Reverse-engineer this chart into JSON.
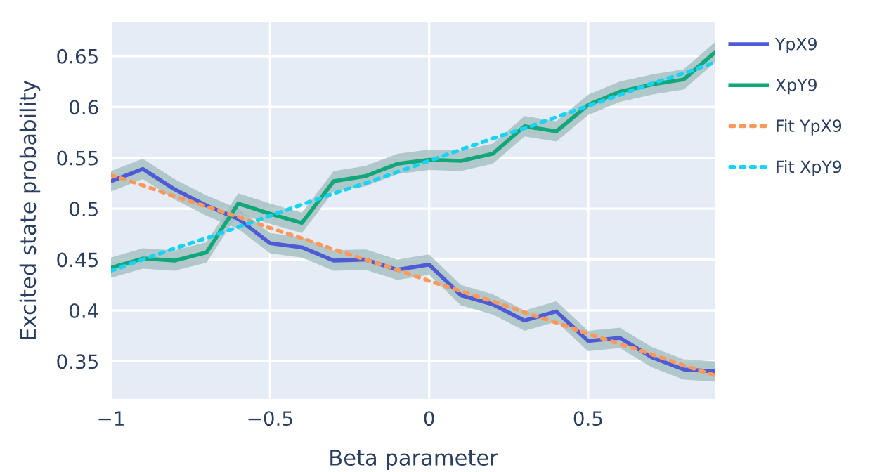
{
  "chart_data": {
    "type": "line",
    "xlabel": "Beta parameter",
    "ylabel": "Excited state probability",
    "x": [
      -1,
      -0.9,
      -0.8,
      -0.7,
      -0.6,
      -0.5,
      -0.4,
      -0.3,
      -0.2,
      -0.1,
      0,
      0.1,
      0.2,
      0.3,
      0.4,
      0.5,
      0.6,
      0.7,
      0.8,
      0.9
    ],
    "xlim": [
      -1,
      0.9
    ],
    "xticks": [
      -1,
      -0.5,
      0,
      0.5
    ],
    "ylim": [
      0.313,
      0.683
    ],
    "yticks": [
      0.35,
      0.4,
      0.45,
      0.5,
      0.55,
      0.6,
      0.65
    ],
    "grid": true,
    "legend": "top right",
    "marker": "none",
    "series": [
      {
        "name": "YpX9",
        "color": "#4f5bd5",
        "line_style": "solid",
        "values": [
          0.527,
          0.539,
          0.519,
          0.503,
          0.49,
          0.466,
          0.462,
          0.449,
          0.45,
          0.44,
          0.445,
          0.415,
          0.406,
          0.39,
          0.399,
          0.37,
          0.373,
          0.354,
          0.342,
          0.34
        ],
        "lower": [
          0.517,
          0.529,
          0.509,
          0.493,
          0.48,
          0.456,
          0.452,
          0.439,
          0.44,
          0.43,
          0.435,
          0.405,
          0.396,
          0.38,
          0.389,
          0.36,
          0.363,
          0.344,
          0.332,
          0.33
        ],
        "upper": [
          0.537,
          0.549,
          0.529,
          0.513,
          0.5,
          0.476,
          0.472,
          0.459,
          0.46,
          0.45,
          0.455,
          0.425,
          0.416,
          0.4,
          0.409,
          0.38,
          0.383,
          0.364,
          0.352,
          0.35
        ]
      },
      {
        "name": "XpY9",
        "color": "#12a77a",
        "line_style": "solid",
        "values": [
          0.442,
          0.451,
          0.449,
          0.457,
          0.505,
          0.495,
          0.486,
          0.527,
          0.532,
          0.544,
          0.548,
          0.547,
          0.554,
          0.581,
          0.576,
          0.602,
          0.615,
          0.622,
          0.627,
          0.654
        ],
        "lower": [
          0.432,
          0.441,
          0.439,
          0.447,
          0.495,
          0.485,
          0.476,
          0.517,
          0.522,
          0.534,
          0.538,
          0.537,
          0.544,
          0.571,
          0.566,
          0.592,
          0.605,
          0.612,
          0.617,
          0.644
        ],
        "upper": [
          0.452,
          0.461,
          0.459,
          0.467,
          0.515,
          0.505,
          0.496,
          0.537,
          0.542,
          0.554,
          0.558,
          0.557,
          0.564,
          0.591,
          0.586,
          0.612,
          0.625,
          0.632,
          0.637,
          0.664
        ]
      },
      {
        "name": "Fit YpX9",
        "color": "#ff9a5c",
        "line_style": "dotted",
        "values": [
          0.533,
          0.523,
          0.512,
          0.502,
          0.492,
          0.481,
          0.471,
          0.46,
          0.45,
          0.44,
          0.429,
          0.419,
          0.409,
          0.398,
          0.388,
          0.377,
          0.367,
          0.357,
          0.346,
          0.336
        ]
      },
      {
        "name": "Fit XpY9",
        "color": "#19d3f3",
        "line_style": "dotted",
        "values": [
          0.439,
          0.45,
          0.461,
          0.471,
          0.482,
          0.493,
          0.504,
          0.515,
          0.525,
          0.536,
          0.547,
          0.558,
          0.569,
          0.579,
          0.59,
          0.601,
          0.612,
          0.623,
          0.633,
          0.644
        ]
      }
    ]
  }
}
